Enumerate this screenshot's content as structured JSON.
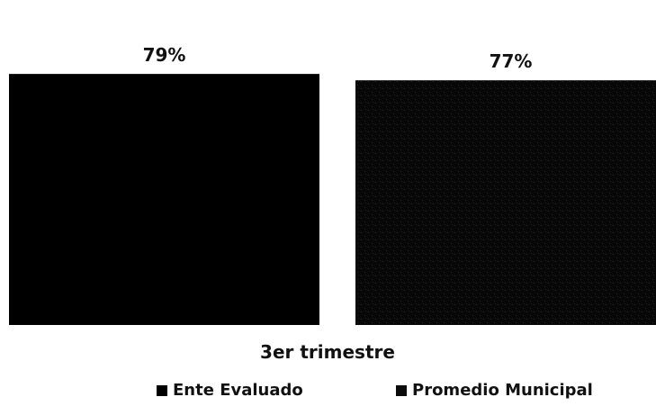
{
  "chart_data": {
    "type": "bar",
    "categories": [
      "3er trimestre"
    ],
    "series": [
      {
        "name": "Ente Evaluado",
        "values": [
          79
        ],
        "label": "79%",
        "color": "#000000"
      },
      {
        "name": "Promedio Municipal",
        "values": [
          77
        ],
        "label": "77%",
        "color": "#0b0b0b"
      }
    ],
    "ylim": [
      0,
      100
    ],
    "grid": false,
    "legend_position": "bottom",
    "value_suffix": "%"
  }
}
